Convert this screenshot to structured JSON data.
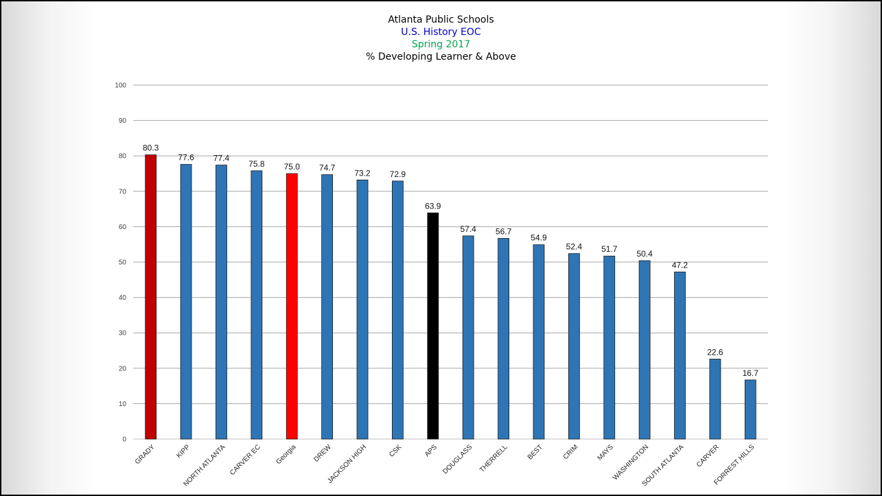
{
  "chart_data": {
    "type": "bar",
    "title": "Atlanta Public Schools",
    "subtitle": "U.S. History EOC",
    "subtitle2": "Spring 2017",
    "subtitle3": "% Developing Learner & Above",
    "title_colors": [
      "#000000",
      "#0000cc",
      "#00a550",
      "#000000"
    ],
    "categories": [
      "GRADY",
      "KIPP",
      "NORTH ATLANTA",
      "CARVER EC",
      "Georgia",
      "DREW",
      "JACKSON HIGH",
      "CSK",
      "APS",
      "DOUGLASS",
      "THERRELL",
      "BEST",
      "CRIM",
      "MAYS",
      "WASHINGTON",
      "SOUTH ATLANTA",
      "CARVER",
      "FORREST HILLS"
    ],
    "values": [
      80.3,
      77.6,
      77.4,
      75.8,
      75.0,
      74.7,
      73.2,
      72.9,
      63.9,
      57.4,
      56.7,
      54.9,
      52.4,
      51.7,
      50.4,
      47.2,
      22.6,
      16.7
    ],
    "value_labels": [
      "80.3",
      "77.6",
      "77.4",
      "75.8",
      "75.0",
      "74.7",
      "73.2",
      "72.9",
      "63.9",
      "57.4",
      "56.7",
      "54.9",
      "52.4",
      "51.7",
      "50.4",
      "47.2",
      "22.6",
      "16.7"
    ],
    "bar_colors": [
      "#c00000",
      "#2e75b6",
      "#2e75b6",
      "#2e75b6",
      "#ff0000",
      "#2e75b6",
      "#2e75b6",
      "#2e75b6",
      "#000000",
      "#2e75b6",
      "#2e75b6",
      "#2e75b6",
      "#2e75b6",
      "#2e75b6",
      "#2e75b6",
      "#2e75b6",
      "#2e75b6",
      "#2e75b6"
    ],
    "ylim": [
      0,
      100
    ],
    "yticks": [
      "0",
      "10",
      "20",
      "30",
      "40",
      "50",
      "60",
      "70",
      "80",
      "90",
      "100"
    ],
    "grid": true,
    "xlabel": "",
    "ylabel": ""
  }
}
